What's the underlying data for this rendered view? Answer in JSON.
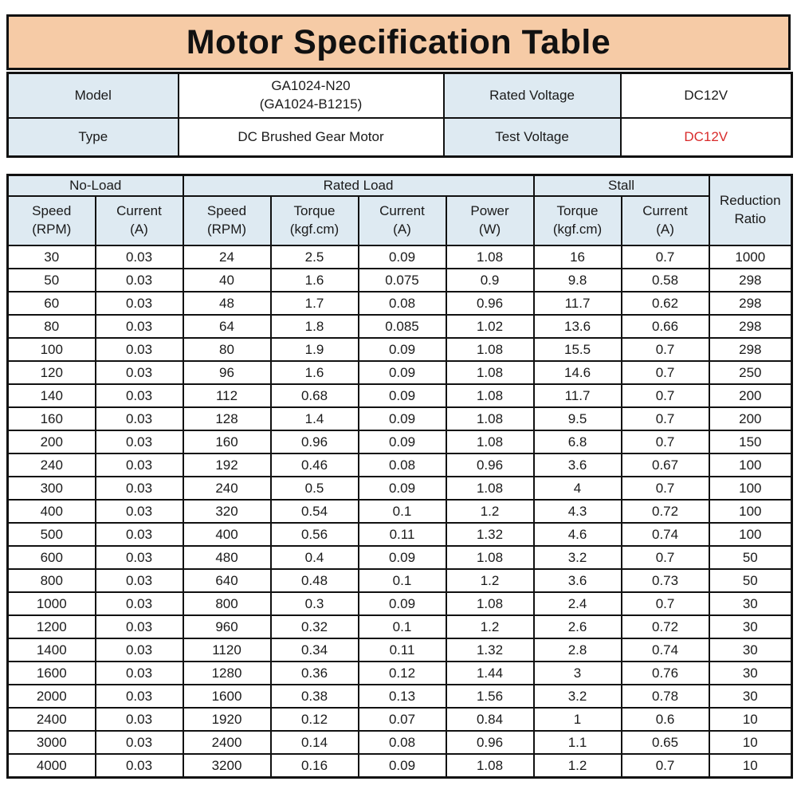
{
  "title": "Motor Specification Table",
  "colors": {
    "banner_background": "#f6cba6",
    "header_cell_background": "#deeaf2",
    "border": "#111111",
    "text": "#1a1a1a",
    "test_voltage_red": "#d92b2b"
  },
  "info_table": {
    "model_label": "Model",
    "model_value": "GA1024-N20\n(GA1024-B1215)",
    "rated_voltage_label": "Rated Voltage",
    "rated_voltage_value": "DC12V",
    "type_label": "Type",
    "type_value": "DC Brushed Gear Motor",
    "test_voltage_label": "Test Voltage",
    "test_voltage_value": "DC12V"
  },
  "spec_table": {
    "group_headers": {
      "no_load": "No-Load",
      "rated_load": "Rated Load",
      "stall": "Stall"
    },
    "corner_header": "Reduction\nRatio",
    "column_headers": [
      "Speed\n(RPM)",
      "Current\n(A)",
      "Speed\n(RPM)",
      "Torque\n(kgf.cm)",
      "Current\n(A)",
      "Power\n(W)",
      "Torque\n(kgf.cm)",
      "Current\n(A)"
    ],
    "rows": [
      [
        "30",
        "0.03",
        "24",
        "2.5",
        "0.09",
        "1.08",
        "16",
        "0.7",
        "1000"
      ],
      [
        "50",
        "0.03",
        "40",
        "1.6",
        "0.075",
        "0.9",
        "9.8",
        "0.58",
        "298"
      ],
      [
        "60",
        "0.03",
        "48",
        "1.7",
        "0.08",
        "0.96",
        "11.7",
        "0.62",
        "298"
      ],
      [
        "80",
        "0.03",
        "64",
        "1.8",
        "0.085",
        "1.02",
        "13.6",
        "0.66",
        "298"
      ],
      [
        "100",
        "0.03",
        "80",
        "1.9",
        "0.09",
        "1.08",
        "15.5",
        "0.7",
        "298"
      ],
      [
        "120",
        "0.03",
        "96",
        "1.6",
        "0.09",
        "1.08",
        "14.6",
        "0.7",
        "250"
      ],
      [
        "140",
        "0.03",
        "112",
        "0.68",
        "0.09",
        "1.08",
        "11.7",
        "0.7",
        "200"
      ],
      [
        "160",
        "0.03",
        "128",
        "1.4",
        "0.09",
        "1.08",
        "9.5",
        "0.7",
        "200"
      ],
      [
        "200",
        "0.03",
        "160",
        "0.96",
        "0.09",
        "1.08",
        "6.8",
        "0.7",
        "150"
      ],
      [
        "240",
        "0.03",
        "192",
        "0.46",
        "0.08",
        "0.96",
        "3.6",
        "0.67",
        "100"
      ],
      [
        "300",
        "0.03",
        "240",
        "0.5",
        "0.09",
        "1.08",
        "4",
        "0.7",
        "100"
      ],
      [
        "400",
        "0.03",
        "320",
        "0.54",
        "0.1",
        "1.2",
        "4.3",
        "0.72",
        "100"
      ],
      [
        "500",
        "0.03",
        "400",
        "0.56",
        "0.11",
        "1.32",
        "4.6",
        "0.74",
        "100"
      ],
      [
        "600",
        "0.03",
        "480",
        "0.4",
        "0.09",
        "1.08",
        "3.2",
        "0.7",
        "50"
      ],
      [
        "800",
        "0.03",
        "640",
        "0.48",
        "0.1",
        "1.2",
        "3.6",
        "0.73",
        "50"
      ],
      [
        "1000",
        "0.03",
        "800",
        "0.3",
        "0.09",
        "1.08",
        "2.4",
        "0.7",
        "30"
      ],
      [
        "1200",
        "0.03",
        "960",
        "0.32",
        "0.1",
        "1.2",
        "2.6",
        "0.72",
        "30"
      ],
      [
        "1400",
        "0.03",
        "1120",
        "0.34",
        "0.11",
        "1.32",
        "2.8",
        "0.74",
        "30"
      ],
      [
        "1600",
        "0.03",
        "1280",
        "0.36",
        "0.12",
        "1.44",
        "3",
        "0.76",
        "30"
      ],
      [
        "2000",
        "0.03",
        "1600",
        "0.38",
        "0.13",
        "1.56",
        "3.2",
        "0.78",
        "30"
      ],
      [
        "2400",
        "0.03",
        "1920",
        "0.12",
        "0.07",
        "0.84",
        "1",
        "0.6",
        "10"
      ],
      [
        "3000",
        "0.03",
        "2400",
        "0.14",
        "0.08",
        "0.96",
        "1.1",
        "0.65",
        "10"
      ],
      [
        "4000",
        "0.03",
        "3200",
        "0.16",
        "0.09",
        "1.08",
        "1.2",
        "0.7",
        "10"
      ]
    ]
  }
}
